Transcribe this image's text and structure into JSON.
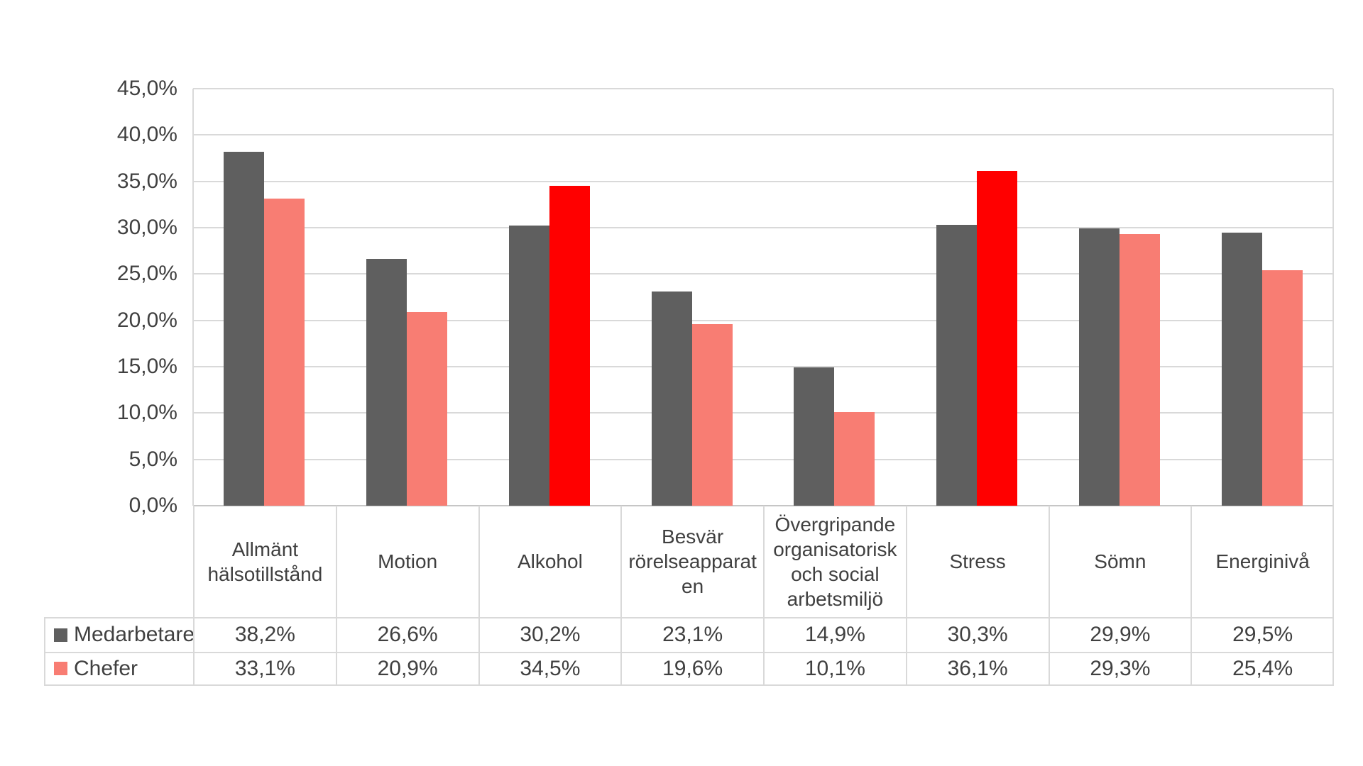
{
  "chart_data": {
    "type": "bar",
    "title": "",
    "categories": [
      "Allmänt hälsotillstånd",
      "Motion",
      "Alkohol",
      "Besvär rörelseapparaten",
      "Övergripande organisatorisk och social arbetsmiljö",
      "Stress",
      "Sömn",
      "Energinivå"
    ],
    "series": [
      {
        "name": "Medarbetare",
        "color": "#5F5F5F",
        "values": [
          38.2,
          26.6,
          30.2,
          23.1,
          14.9,
          30.3,
          29.9,
          29.5
        ],
        "display": [
          "38,2%",
          "26,6%",
          "30,2%",
          "23,1%",
          "14,9%",
          "30,3%",
          "29,9%",
          "29,5%"
        ]
      },
      {
        "name": "Chefer",
        "color": "#F87D73",
        "point_colors": [
          "#F87D73",
          "#F87D73",
          "#FF0000",
          "#F87D73",
          "#F87D73",
          "#FF0000",
          "#F87D73",
          "#F87D73"
        ],
        "values": [
          33.1,
          20.9,
          34.5,
          19.6,
          10.1,
          36.1,
          29.3,
          25.4
        ],
        "display": [
          "33,1%",
          "20,9%",
          "34,5%",
          "19,6%",
          "10,1%",
          "36,1%",
          "29,3%",
          "25,4%"
        ]
      }
    ],
    "y_axis": {
      "min": 0,
      "max": 45,
      "step": 5,
      "tick_labels": [
        "45,0%",
        "40,0%",
        "35,0%",
        "30,0%",
        "25,0%",
        "20,0%",
        "15,0%",
        "10,0%",
        "5,0%",
        "0,0%"
      ]
    },
    "grid": true,
    "legend_position": "table-left-column"
  },
  "colors": {
    "bar_gray": "#5F5F5F",
    "bar_salmon": "#F87D73",
    "bar_red": "#FF0000",
    "gridline": "#D9D9D9",
    "table_border": "#D9D9D9",
    "axis_line": "#C6C6C6",
    "text": "#404040",
    "background": "#FFFFFF"
  }
}
